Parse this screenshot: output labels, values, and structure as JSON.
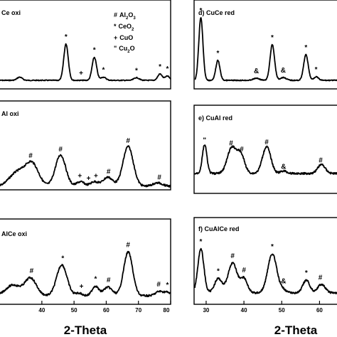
{
  "legend": [
    {
      "symbol": "#",
      "base": "Al",
      "sub1": "2",
      "mid": "O",
      "sub2": "3"
    },
    {
      "symbol": "*",
      "base": "CeO",
      "sub1": "2",
      "mid": "",
      "sub2": ""
    },
    {
      "symbol": "+",
      "base": "CuO",
      "sub1": "",
      "mid": "",
      "sub2": ""
    },
    {
      "symbol": "\"",
      "base": "Cu",
      "sub1": "2",
      "mid": "O",
      "sub2": ""
    }
  ],
  "chart_data": [
    {
      "type": "line",
      "id": "a",
      "title": "Ce oxi",
      "xlabel": "",
      "xlim": [
        27,
        80
      ],
      "peaks": [
        {
          "x": 47.5,
          "h": 0.68,
          "w": 0.7
        },
        {
          "x": 56.3,
          "h": 0.43,
          "w": 0.7
        },
        {
          "x": 33.1,
          "h": 0.06,
          "w": 0.8
        },
        {
          "x": 59.1,
          "h": 0.06,
          "w": 0.8
        },
        {
          "x": 69.4,
          "h": 0.05,
          "w": 0.8
        },
        {
          "x": 76.7,
          "h": 0.12,
          "w": 0.7
        },
        {
          "x": 79.0,
          "h": 0.08,
          "w": 0.7
        }
      ],
      "markers": [
        {
          "x": 47.5,
          "label": "*"
        },
        {
          "x": 52.2,
          "label": "+"
        },
        {
          "x": 56.3,
          "label": "*"
        },
        {
          "x": 59.1,
          "label": "*"
        },
        {
          "x": 69.4,
          "label": "*"
        },
        {
          "x": 76.7,
          "label": "*"
        },
        {
          "x": 79.0,
          "label": "*"
        }
      ]
    },
    {
      "type": "line",
      "id": "b",
      "title": "Al oxi",
      "xlabel": "",
      "xlim": [
        27,
        80
      ],
      "peaks": [
        {
          "x": 37.0,
          "h": 0.38,
          "w": 2.0
        },
        {
          "x": 32.5,
          "h": 0.25,
          "w": 2.5
        },
        {
          "x": 45.8,
          "h": 0.55,
          "w": 1.6
        },
        {
          "x": 52.0,
          "h": 0.08,
          "w": 1.2
        },
        {
          "x": 56.3,
          "h": 0.08,
          "w": 1.2
        },
        {
          "x": 60.5,
          "h": 0.16,
          "w": 1.5
        },
        {
          "x": 66.8,
          "h": 0.7,
          "w": 1.6
        },
        {
          "x": 76.0,
          "h": 0.06,
          "w": 1.5
        }
      ],
      "markers": [
        {
          "x": 36.5,
          "label": "#"
        },
        {
          "x": 45.8,
          "label": "#"
        },
        {
          "x": 51.8,
          "label": "+"
        },
        {
          "x": 54.5,
          "label": "+"
        },
        {
          "x": 56.8,
          "label": "+"
        },
        {
          "x": 60.7,
          "label": "#"
        },
        {
          "x": 66.8,
          "label": "#"
        },
        {
          "x": 76.5,
          "label": "#"
        }
      ]
    },
    {
      "type": "line",
      "id": "c",
      "title": "AlCe oxi",
      "xlabel": "2-Theta",
      "xlim": [
        27,
        80
      ],
      "ticks": [
        40,
        50,
        60,
        70,
        80
      ],
      "peaks": [
        {
          "x": 31.0,
          "h": 0.2,
          "w": 2.2
        },
        {
          "x": 36.5,
          "h": 0.33,
          "w": 1.8
        },
        {
          "x": 46.2,
          "h": 0.58,
          "w": 1.6
        },
        {
          "x": 51.5,
          "h": 0.05,
          "w": 1.0
        },
        {
          "x": 56.6,
          "h": 0.18,
          "w": 1.0
        },
        {
          "x": 60.5,
          "h": 0.16,
          "w": 1.4
        },
        {
          "x": 66.8,
          "h": 0.82,
          "w": 1.4
        },
        {
          "x": 76.5,
          "h": 0.08,
          "w": 1.2
        },
        {
          "x": 79.0,
          "h": 0.06,
          "w": 1.0
        }
      ],
      "markers": [
        {
          "x": 36.8,
          "label": "#"
        },
        {
          "x": 46.5,
          "label": "*"
        },
        {
          "x": 52.3,
          "label": "+"
        },
        {
          "x": 56.7,
          "label": "*"
        },
        {
          "x": 60.7,
          "label": "#"
        },
        {
          "x": 66.8,
          "label": "#"
        },
        {
          "x": 76.3,
          "label": "#"
        },
        {
          "x": 79.0,
          "label": "*"
        }
      ]
    },
    {
      "type": "line",
      "id": "d",
      "title": "d) CuCe red",
      "xlabel": "",
      "xlim": [
        27,
        65
      ],
      "peaks": [
        {
          "x": 28.6,
          "h": 0.88,
          "w": 0.55
        },
        {
          "x": 33.1,
          "h": 0.28,
          "w": 0.55
        },
        {
          "x": 43.3,
          "h": 0.03,
          "w": 0.8
        },
        {
          "x": 47.5,
          "h": 0.5,
          "w": 0.6
        },
        {
          "x": 50.4,
          "h": 0.04,
          "w": 0.8
        },
        {
          "x": 56.4,
          "h": 0.36,
          "w": 0.6
        },
        {
          "x": 59.1,
          "h": 0.05,
          "w": 0.6
        }
      ],
      "markers": [
        {
          "x": 28.6,
          "label": "*"
        },
        {
          "x": 33.1,
          "label": "*"
        },
        {
          "x": 43.3,
          "label": "&"
        },
        {
          "x": 47.5,
          "label": "*"
        },
        {
          "x": 50.4,
          "label": "&"
        },
        {
          "x": 56.4,
          "label": "*"
        },
        {
          "x": 59.1,
          "label": "*"
        }
      ]
    },
    {
      "type": "line",
      "id": "e",
      "title": "e) CuAl red",
      "xlabel": "",
      "xlim": [
        27,
        65
      ],
      "peaks": [
        {
          "x": 29.6,
          "h": 0.45,
          "w": 0.6
        },
        {
          "x": 36.8,
          "h": 0.4,
          "w": 1.2
        },
        {
          "x": 39.2,
          "h": 0.28,
          "w": 1.0
        },
        {
          "x": 46.0,
          "h": 0.42,
          "w": 1.1
        },
        {
          "x": 50.5,
          "h": 0.04,
          "w": 0.8
        },
        {
          "x": 60.5,
          "h": 0.14,
          "w": 1.0
        }
      ],
      "markers": [
        {
          "x": 29.6,
          "label": "\""
        },
        {
          "x": 36.6,
          "label": "#"
        },
        {
          "x": 39.4,
          "label": "#"
        },
        {
          "x": 46.0,
          "label": "#"
        },
        {
          "x": 50.5,
          "label": "&"
        },
        {
          "x": 60.3,
          "label": "#"
        }
      ]
    },
    {
      "type": "line",
      "id": "f",
      "title": "f) CuAlCe red",
      "xlabel": "2-Theta",
      "xlim": [
        27,
        65
      ],
      "ticks": [
        30,
        40,
        50,
        60
      ],
      "peaks": [
        {
          "x": 28.6,
          "h": 0.62,
          "w": 0.8
        },
        {
          "x": 33.2,
          "h": 0.2,
          "w": 1.0
        },
        {
          "x": 37.0,
          "h": 0.42,
          "w": 1.2
        },
        {
          "x": 40.0,
          "h": 0.2,
          "w": 0.9
        },
        {
          "x": 47.5,
          "h": 0.55,
          "w": 1.2
        },
        {
          "x": 50.5,
          "h": 0.04,
          "w": 0.8
        },
        {
          "x": 56.5,
          "h": 0.18,
          "w": 0.9
        },
        {
          "x": 60.5,
          "h": 0.12,
          "w": 1.0
        }
      ],
      "markers": [
        {
          "x": 28.6,
          "label": "*"
        },
        {
          "x": 33.2,
          "label": "*"
        },
        {
          "x": 37.0,
          "label": "#"
        },
        {
          "x": 40.0,
          "label": "#"
        },
        {
          "x": 47.5,
          "label": "*"
        },
        {
          "x": 50.5,
          "label": "&"
        },
        {
          "x": 56.5,
          "label": "*"
        },
        {
          "x": 60.2,
          "label": "#"
        }
      ]
    }
  ]
}
